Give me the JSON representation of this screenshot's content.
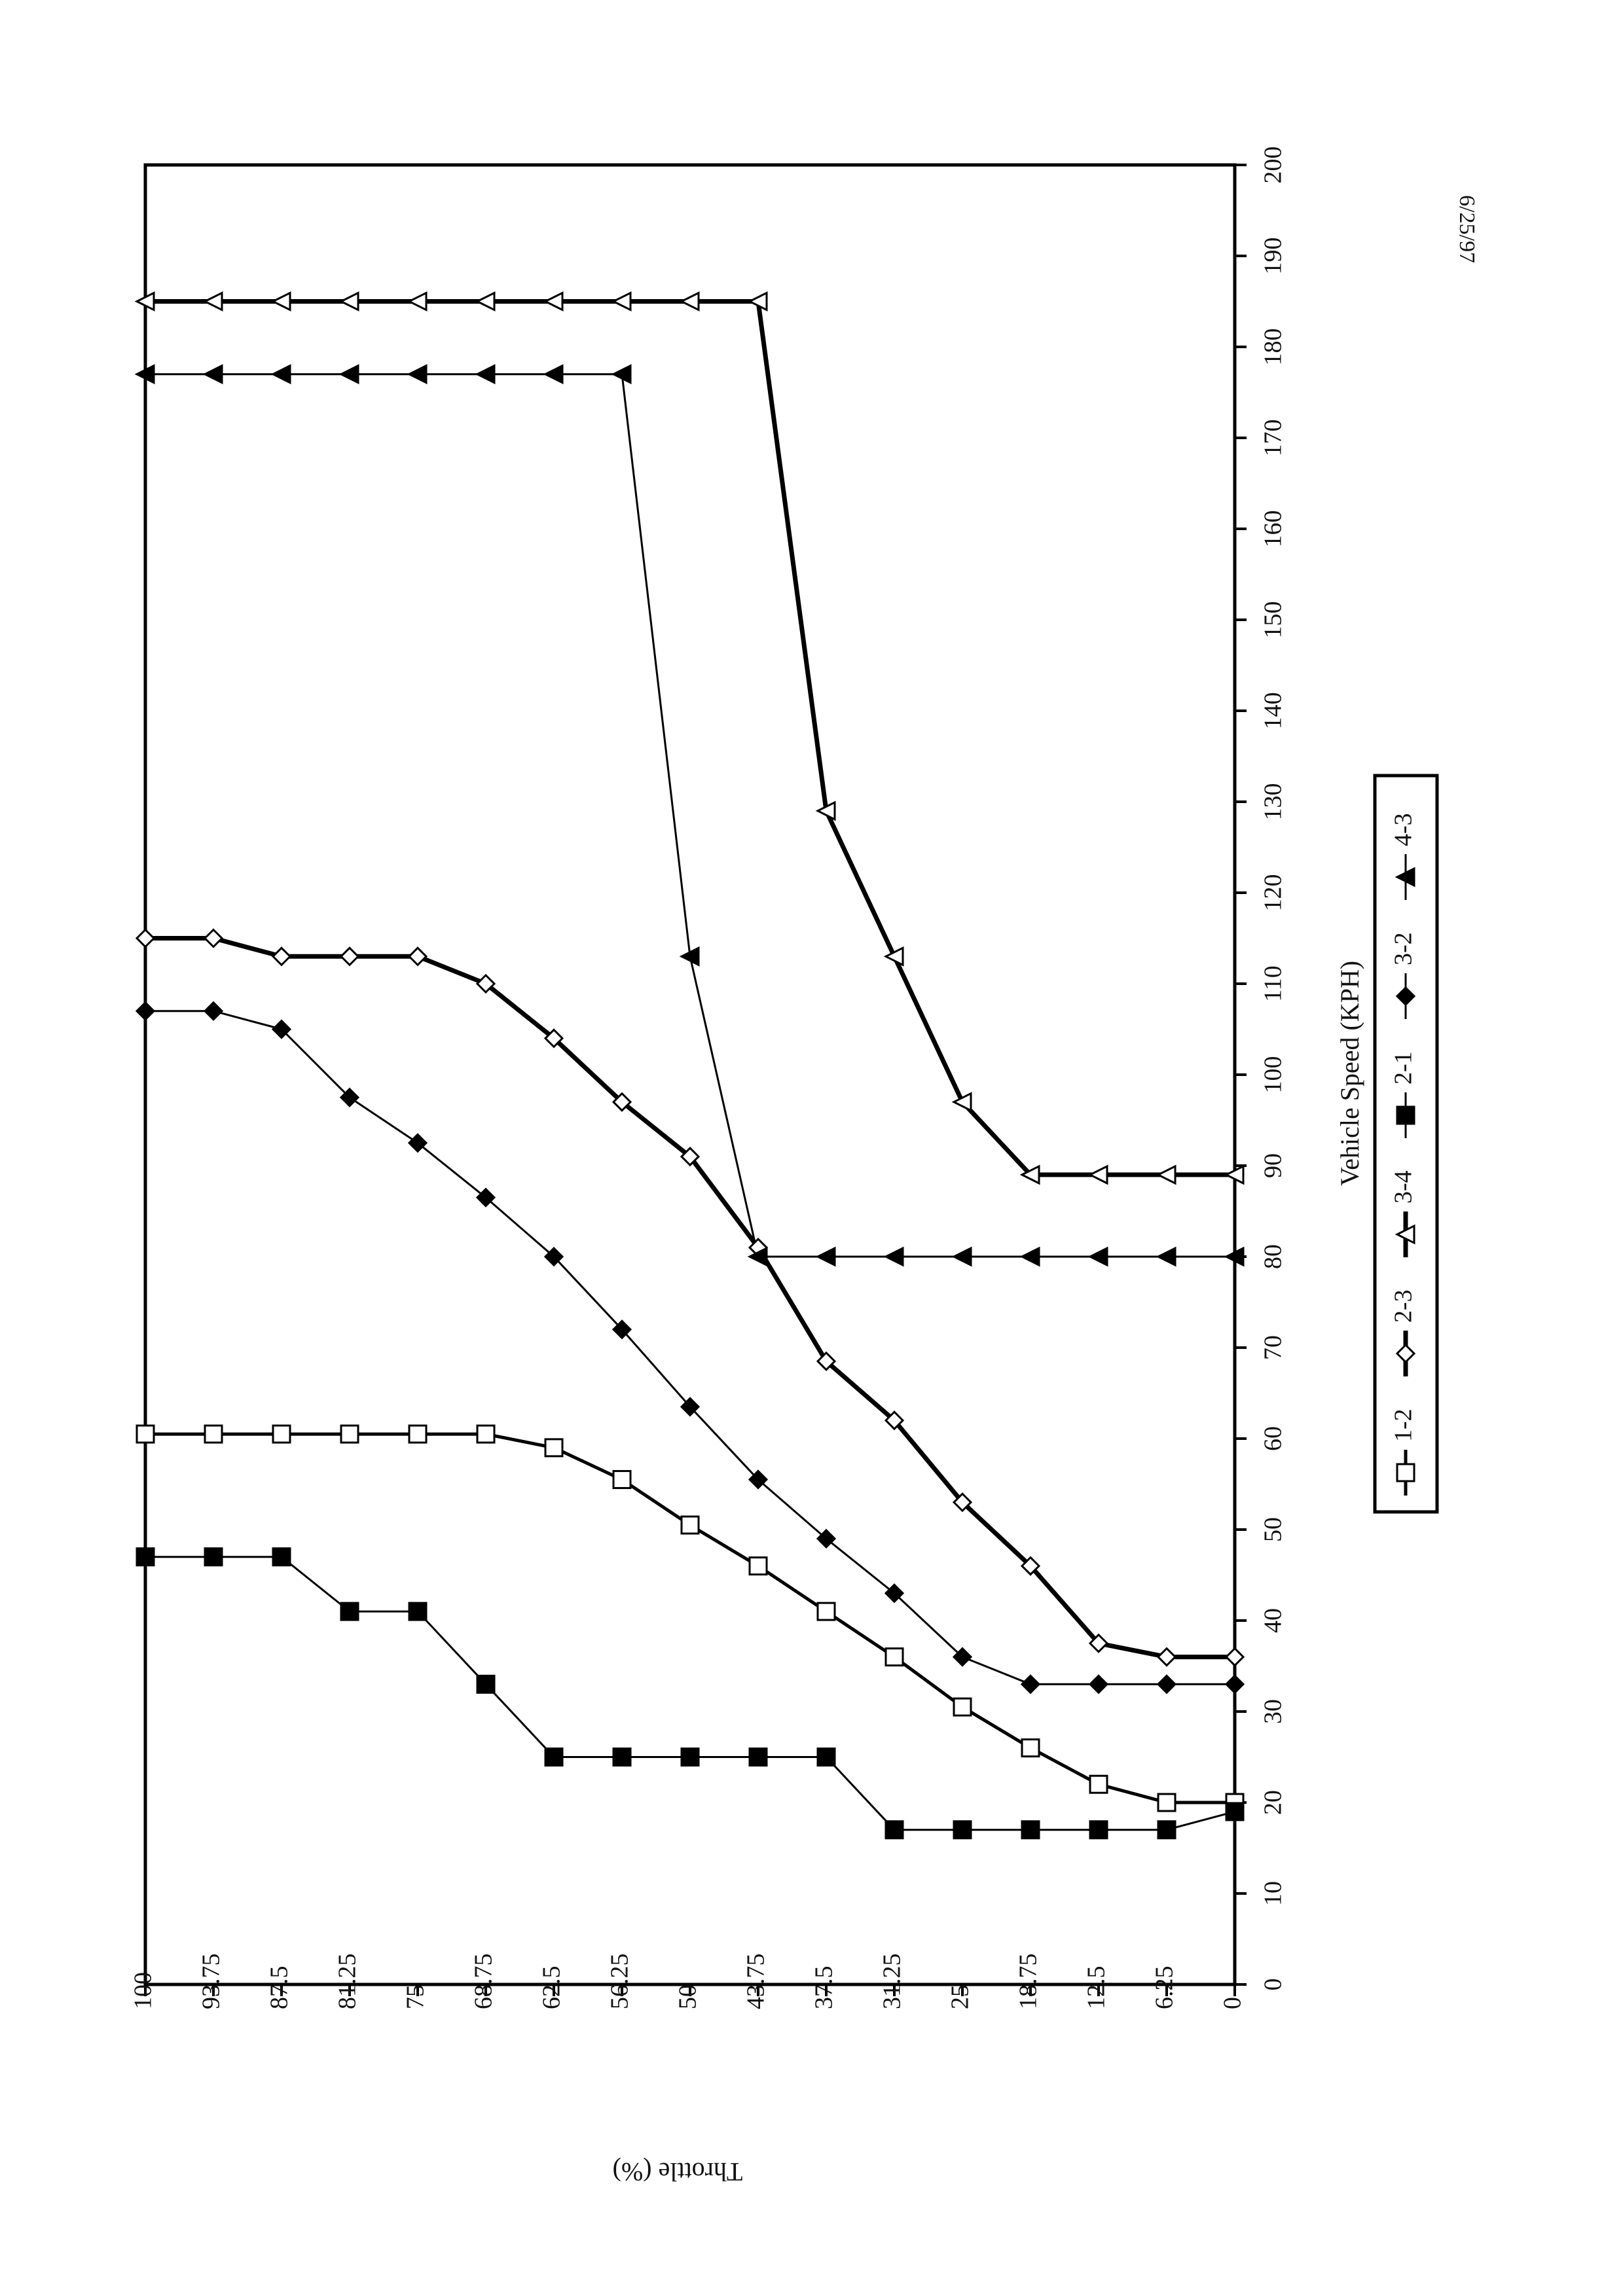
{
  "chart_data": {
    "type": "line",
    "orientation": "rotated-90-clockwise",
    "date_stamp": "6/25/97",
    "xlabel": "Vehicle Speed (KPH)",
    "ylabel": "Throttle (%)",
    "xlim": [
      0,
      200
    ],
    "ylim": [
      0,
      100
    ],
    "x_ticks": [
      "0",
      "10",
      "20",
      "30",
      "40",
      "50",
      "60",
      "70",
      "80",
      "90",
      "100",
      "110",
      "120",
      "130",
      "140",
      "150",
      "160",
      "170",
      "180",
      "190",
      "200"
    ],
    "y_ticks": [
      "100",
      "93.75",
      "87.5",
      "81.25",
      "75",
      "68.75",
      "62.5",
      "56.25",
      "50",
      "43.75",
      "37.5",
      "31.25",
      "25",
      "18.75",
      "12.5",
      "6.25",
      "0"
    ],
    "grid": false,
    "legend_placement": "right",
    "series": [
      {
        "name": "1-2",
        "marker": "square-open",
        "line": "medium",
        "points": [
          [
            20,
            0
          ],
          [
            20,
            6.25
          ],
          [
            22,
            12.5
          ],
          [
            26,
            18.75
          ],
          [
            30.5,
            25
          ],
          [
            36,
            31.25
          ],
          [
            41,
            37.5
          ],
          [
            46,
            43.75
          ],
          [
            50.5,
            50
          ],
          [
            55.5,
            56.25
          ],
          [
            59,
            62.5
          ],
          [
            60.5,
            68.75
          ],
          [
            60.5,
            75
          ],
          [
            60.5,
            81.25
          ],
          [
            60.5,
            87.5
          ],
          [
            60.5,
            93.75
          ],
          [
            60.5,
            100
          ]
        ]
      },
      {
        "name": "2-3",
        "marker": "diamond-open",
        "line": "thick",
        "points": [
          [
            36,
            0
          ],
          [
            36,
            6.25
          ],
          [
            37.5,
            12.5
          ],
          [
            46,
            18.75
          ],
          [
            53,
            25
          ],
          [
            62,
            31.25
          ],
          [
            68.5,
            37.5
          ],
          [
            81,
            43.75
          ],
          [
            91,
            50
          ],
          [
            97,
            56.25
          ],
          [
            104,
            62.5
          ],
          [
            110,
            68.75
          ],
          [
            113,
            75
          ],
          [
            113,
            81.25
          ],
          [
            113,
            87.5
          ],
          [
            115,
            93.75
          ],
          [
            115,
            100
          ]
        ]
      },
      {
        "name": "3-4",
        "marker": "triangle-open",
        "line": "thick",
        "points": [
          [
            89,
            0
          ],
          [
            89,
            6.25
          ],
          [
            89,
            12.5
          ],
          [
            89,
            18.75
          ],
          [
            97,
            25
          ],
          [
            113,
            31.25
          ],
          [
            129,
            37.5
          ],
          [
            185,
            43.75
          ],
          [
            185,
            50
          ],
          [
            185,
            56.25
          ],
          [
            185,
            62.5
          ],
          [
            185,
            68.75
          ],
          [
            185,
            75
          ],
          [
            185,
            81.25
          ],
          [
            185,
            87.5
          ],
          [
            185,
            93.75
          ],
          [
            185,
            100
          ]
        ]
      },
      {
        "name": "2-1",
        "marker": "square-filled",
        "line": "thin",
        "points": [
          [
            19,
            0
          ],
          [
            17,
            6.25
          ],
          [
            17,
            12.5
          ],
          [
            17,
            18.75
          ],
          [
            17,
            25
          ],
          [
            17,
            31.25
          ],
          [
            25,
            37.5
          ],
          [
            25,
            43.75
          ],
          [
            25,
            50
          ],
          [
            25,
            56.25
          ],
          [
            25,
            62.5
          ],
          [
            33,
            68.75
          ],
          [
            41,
            75
          ],
          [
            41,
            81.25
          ],
          [
            47,
            87.5
          ],
          [
            47,
            93.75
          ],
          [
            47,
            100
          ]
        ]
      },
      {
        "name": "3-2",
        "marker": "diamond-filled",
        "line": "thin",
        "points": [
          [
            33,
            0
          ],
          [
            33,
            6.25
          ],
          [
            33,
            12.5
          ],
          [
            33,
            18.75
          ],
          [
            36,
            25
          ],
          [
            43,
            31.25
          ],
          [
            49,
            37.5
          ],
          [
            55.5,
            43.75
          ],
          [
            63.5,
            50
          ],
          [
            72,
            56.25
          ],
          [
            80,
            62.5
          ],
          [
            86.5,
            68.75
          ],
          [
            92.5,
            75
          ],
          [
            97.5,
            81.25
          ],
          [
            105,
            87.5
          ],
          [
            107,
            93.75
          ],
          [
            107,
            100
          ]
        ]
      },
      {
        "name": "4-3",
        "marker": "triangle-filled",
        "line": "thin",
        "points": [
          [
            80,
            0
          ],
          [
            80,
            6.25
          ],
          [
            80,
            12.5
          ],
          [
            80,
            18.75
          ],
          [
            80,
            25
          ],
          [
            80,
            31.25
          ],
          [
            80,
            37.5
          ],
          [
            80,
            43.75
          ],
          [
            113,
            50
          ],
          [
            177,
            56.25
          ],
          [
            177,
            62.5
          ],
          [
            177,
            68.75
          ],
          [
            177,
            75
          ],
          [
            177,
            81.25
          ],
          [
            177,
            87.5
          ],
          [
            177,
            93.75
          ],
          [
            177,
            100
          ]
        ]
      }
    ]
  }
}
